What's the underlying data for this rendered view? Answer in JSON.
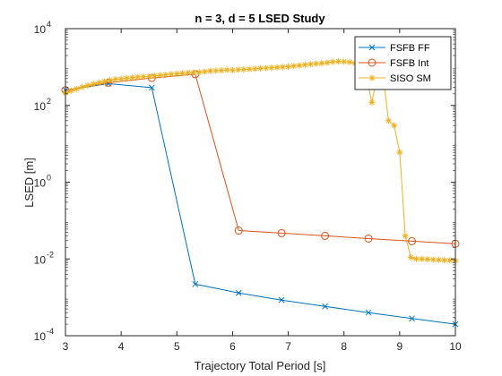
{
  "chart_data": {
    "type": "line",
    "title": "n = 3, d = 5 LSED Study",
    "xlabel": "Trajectory Total Period [s]",
    "ylabel": "LSED [m]",
    "xlim": [
      3,
      10
    ],
    "ylim_exponents": [
      -4,
      4
    ],
    "yscale": "log",
    "x_ticks": [
      "3",
      "4",
      "5",
      "6",
      "7",
      "8",
      "9",
      "10"
    ],
    "y_ticks": [
      {
        "base": "10",
        "exp": "-4"
      },
      {
        "base": "10",
        "exp": "-2"
      },
      {
        "base": "10",
        "exp": "0"
      },
      {
        "base": "10",
        "exp": "2"
      },
      {
        "base": "10",
        "exp": "4"
      }
    ],
    "legend_position": "top-right",
    "grid": false,
    "series": [
      {
        "name": "FSFB FF",
        "color": "#0072BD",
        "marker": "x",
        "x": [
          3.0,
          3.77,
          4.55,
          5.33,
          6.11,
          6.88,
          7.66,
          8.44,
          9.22,
          10.0
        ],
        "y": [
          250,
          370,
          290,
          0.0022,
          0.0013,
          0.00085,
          0.00058,
          0.0004,
          0.00028,
          0.0002
        ]
      },
      {
        "name": "FSFB Int",
        "color": "#D95319",
        "marker": "o",
        "x": [
          3.0,
          3.77,
          4.55,
          5.33,
          6.11,
          6.88,
          7.66,
          8.44,
          9.22,
          10.0
        ],
        "y": [
          250,
          390,
          520,
          650,
          0.055,
          0.047,
          0.04,
          0.034,
          0.029,
          0.025
        ]
      },
      {
        "name": "SISO SM",
        "color": "#EDB120",
        "marker": "*",
        "x": [
          3.0,
          3.1,
          3.2,
          3.3,
          3.4,
          3.5,
          3.6,
          3.7,
          3.8,
          3.9,
          4.0,
          4.1,
          4.2,
          4.3,
          4.4,
          4.5,
          4.6,
          4.7,
          4.8,
          4.9,
          5.0,
          5.1,
          5.2,
          5.3,
          5.4,
          5.5,
          5.6,
          5.7,
          5.8,
          5.9,
          6.0,
          6.1,
          6.2,
          6.3,
          6.4,
          6.5,
          6.6,
          6.7,
          6.8,
          6.9,
          7.0,
          7.1,
          7.2,
          7.3,
          7.4,
          7.5,
          7.6,
          7.7,
          7.8,
          7.9,
          8.0,
          8.1,
          8.2,
          8.3,
          8.4,
          8.5,
          8.6,
          8.7,
          8.8,
          8.9,
          9.0,
          9.1,
          9.2,
          9.3,
          9.4,
          9.5,
          9.6,
          9.7,
          9.8,
          9.9,
          10.0
        ],
        "y": [
          210,
          240,
          270,
          300,
          330,
          360,
          390,
          420,
          450,
          480,
          490,
          510,
          530,
          550,
          560,
          570,
          590,
          610,
          630,
          650,
          670,
          690,
          710,
          720,
          730,
          760,
          790,
          800,
          820,
          840,
          830,
          850,
          870,
          880,
          900,
          920,
          940,
          960,
          980,
          1000,
          1020,
          1060,
          1100,
          1140,
          1180,
          1220,
          1260,
          1300,
          1360,
          1400,
          1380,
          1350,
          1250,
          900,
          600,
          120,
          650,
          650,
          40,
          30,
          6,
          0.04,
          0.011,
          0.01,
          0.01,
          0.0098,
          0.0096,
          0.0095,
          0.0093,
          0.0092,
          0.009
        ]
      }
    ]
  }
}
